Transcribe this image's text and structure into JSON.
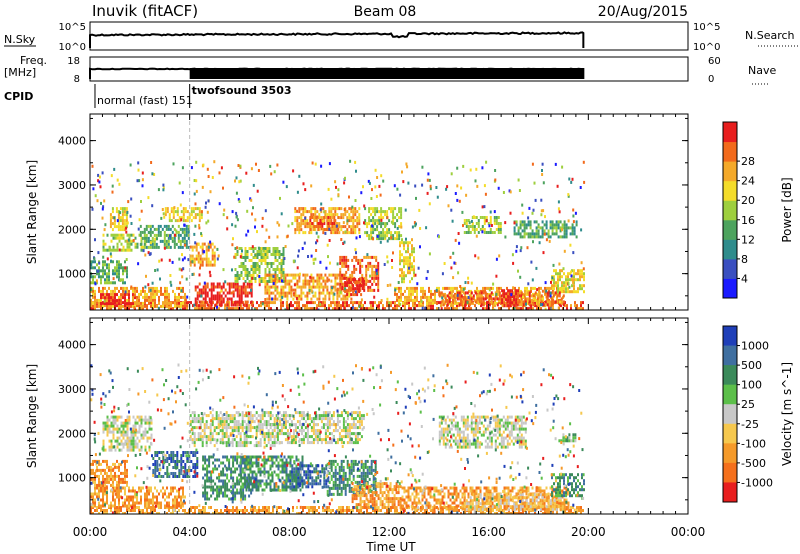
{
  "header": {
    "station": "Inuvik (fitACF)",
    "beam": "Beam 08",
    "date": "20/Aug/2015"
  },
  "noise_panel": {
    "left_label": "N.Sky",
    "left_ticks": [
      "10^5",
      "10^0"
    ],
    "right_ticks": [
      "10^5",
      "10^0"
    ],
    "right_label": "N.Search"
  },
  "freq_panel": {
    "left_label_1": "Freq.",
    "left_label_2": "[MHz]",
    "left_ticks": [
      "18",
      "8"
    ],
    "right_ticks": [
      "60",
      "0"
    ],
    "right_label": "Nave"
  },
  "cpid": {
    "label": "CPID",
    "modes": [
      {
        "text": "normal (fast) 151",
        "start_h": 0.2
      },
      {
        "text": "twofsound 3503",
        "start_h": 4.0
      }
    ]
  },
  "x_axis": {
    "label": "Time UT",
    "ticks": [
      "00:00",
      "04:00",
      "08:00",
      "12:00",
      "16:00",
      "20:00",
      "00:00"
    ],
    "range_h": [
      0,
      24
    ]
  },
  "chart_data": [
    {
      "type": "heatmap",
      "name": "power-panel",
      "ylabel": "Slant Range [km]",
      "yticks": [
        "1000",
        "2000",
        "3000",
        "4000"
      ],
      "ylim": [
        180,
        4600
      ],
      "colorbar": {
        "label": "Power [dB]",
        "ticks": [
          "4",
          "8",
          "12",
          "16",
          "20",
          "24",
          "28"
        ],
        "colors": [
          "#1a1aff",
          "#3a4fc0",
          "#2f8c8c",
          "#4da35e",
          "#9ecf3e",
          "#f4dc2a",
          "#f4a92a",
          "#f26a1c",
          "#e81e1e"
        ]
      },
      "data_end_h": 19.8,
      "regions": [
        {
          "t0": 0.0,
          "t1": 19.8,
          "r0": 180,
          "r1": 380,
          "level": 7
        },
        {
          "t0": 0.0,
          "t1": 3.8,
          "r0": 250,
          "r1": 700,
          "level": 6
        },
        {
          "t0": 0.4,
          "t1": 1.8,
          "r0": 300,
          "r1": 560,
          "level": 8
        },
        {
          "t0": 0.0,
          "t1": 1.5,
          "r0": 800,
          "r1": 1300,
          "level": 3
        },
        {
          "t0": 0.5,
          "t1": 2.2,
          "r0": 1500,
          "r1": 1900,
          "level": 4
        },
        {
          "t0": 0.8,
          "t1": 1.5,
          "r0": 2000,
          "r1": 2500,
          "level": 5
        },
        {
          "t0": 2.0,
          "t1": 4.0,
          "r0": 1600,
          "r1": 2100,
          "level": 3
        },
        {
          "t0": 3.0,
          "t1": 4.5,
          "r0": 2200,
          "r1": 2500,
          "level": 5
        },
        {
          "t0": 4.0,
          "t1": 5.0,
          "r0": 1200,
          "r1": 1700,
          "level": 6
        },
        {
          "t0": 4.2,
          "t1": 6.5,
          "r0": 300,
          "r1": 800,
          "level": 8
        },
        {
          "t0": 5.8,
          "t1": 7.8,
          "r0": 800,
          "r1": 1600,
          "level": 4
        },
        {
          "t0": 7.0,
          "t1": 10.5,
          "r0": 400,
          "r1": 1000,
          "level": 6
        },
        {
          "t0": 8.2,
          "t1": 10.8,
          "r0": 1900,
          "r1": 2500,
          "level": 6
        },
        {
          "t0": 8.8,
          "t1": 10.0,
          "r0": 2000,
          "r1": 2300,
          "level": 7
        },
        {
          "t0": 10.0,
          "t1": 11.6,
          "r0": 600,
          "r1": 1400,
          "level": 7
        },
        {
          "t0": 10.2,
          "t1": 11.0,
          "r0": 500,
          "r1": 900,
          "level": 8
        },
        {
          "t0": 11.0,
          "t1": 12.5,
          "r0": 1800,
          "r1": 2500,
          "level": 4
        },
        {
          "t0": 12.2,
          "t1": 19.0,
          "r0": 300,
          "r1": 700,
          "level": 6
        },
        {
          "t0": 12.4,
          "t1": 13.0,
          "r0": 800,
          "r1": 1800,
          "level": 5
        },
        {
          "t0": 14.0,
          "t1": 19.0,
          "r0": 300,
          "r1": 600,
          "level": 7
        },
        {
          "t0": 16.5,
          "t1": 17.2,
          "r0": 300,
          "r1": 650,
          "level": 8
        },
        {
          "t0": 15.0,
          "t1": 16.5,
          "r0": 1900,
          "r1": 2300,
          "level": 4
        },
        {
          "t0": 17.0,
          "t1": 19.5,
          "r0": 1800,
          "r1": 2200,
          "level": 3
        },
        {
          "t0": 18.5,
          "t1": 19.8,
          "r0": 600,
          "r1": 1100,
          "level": 5
        }
      ]
    },
    {
      "type": "heatmap",
      "name": "velocity-panel",
      "ylabel": "Slant Range [km]",
      "yticks": [
        "1000",
        "2000",
        "3000",
        "4000"
      ],
      "ylim": [
        180,
        4600
      ],
      "colorbar": {
        "label": "Velocity [m s^-1]",
        "ticks": [
          "1000",
          "500",
          "100",
          "25",
          "-25",
          "-100",
          "-500",
          "-1000"
        ],
        "colors": [
          "#1f3fb8",
          "#3f6fa0",
          "#3b8a5a",
          "#5cbf4a",
          "#c8c8c8",
          "#f6c84e",
          "#f59a2a",
          "#f5701c",
          "#e81e1e"
        ]
      },
      "data_end_h": 19.8,
      "regions": [
        {
          "t0": 0.0,
          "t1": 19.8,
          "r0": 180,
          "r1": 360,
          "level": 6
        },
        {
          "t0": 0.0,
          "t1": 3.8,
          "r0": 360,
          "r1": 800,
          "level": 6
        },
        {
          "t0": 0.0,
          "t1": 1.5,
          "r0": 800,
          "r1": 1400,
          "level": 6
        },
        {
          "t0": 0.5,
          "t1": 2.5,
          "r0": 1600,
          "r1": 2400,
          "level": 4
        },
        {
          "t0": 2.5,
          "t1": 4.3,
          "r0": 1000,
          "r1": 1600,
          "level": 1
        },
        {
          "t0": 4.0,
          "t1": 7.5,
          "r0": 1700,
          "r1": 2500,
          "level": 4
        },
        {
          "t0": 4.5,
          "t1": 6.5,
          "r0": 500,
          "r1": 1500,
          "level": 2
        },
        {
          "t0": 6.0,
          "t1": 8.5,
          "r0": 700,
          "r1": 1500,
          "level": 2
        },
        {
          "t0": 7.5,
          "t1": 11.0,
          "r0": 1800,
          "r1": 2500,
          "level": 4
        },
        {
          "t0": 8.0,
          "t1": 9.6,
          "r0": 800,
          "r1": 1300,
          "level": 1
        },
        {
          "t0": 9.5,
          "t1": 11.5,
          "r0": 600,
          "r1": 1400,
          "level": 2
        },
        {
          "t0": 10.5,
          "t1": 12.5,
          "r0": 300,
          "r1": 900,
          "level": 6
        },
        {
          "t0": 12.5,
          "t1": 19.2,
          "r0": 300,
          "r1": 800,
          "level": 6
        },
        {
          "t0": 15.0,
          "t1": 19.0,
          "r0": 300,
          "r1": 650,
          "level": 5
        },
        {
          "t0": 14.0,
          "t1": 17.5,
          "r0": 1700,
          "r1": 2400,
          "level": 4
        },
        {
          "t0": 18.5,
          "t1": 19.8,
          "r0": 600,
          "r1": 1100,
          "level": 2
        },
        {
          "t0": 18.8,
          "t1": 19.5,
          "r0": 1800,
          "r1": 2000,
          "level": 3
        }
      ]
    }
  ]
}
